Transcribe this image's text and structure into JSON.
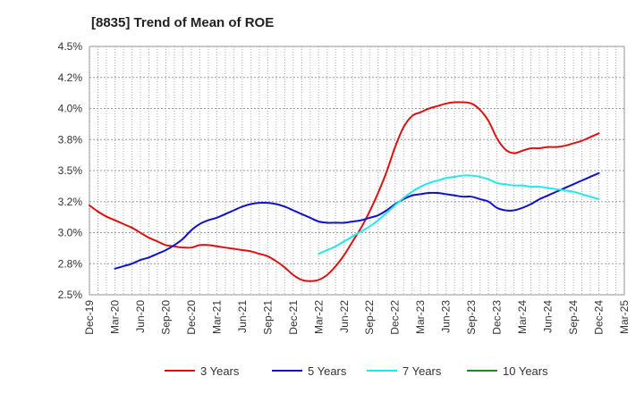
{
  "chart_data": {
    "type": "line",
    "title": "[8835]  Trend of Mean of ROE",
    "xlabel": "",
    "ylabel": "",
    "x_ticks": [
      "Dec-19",
      "Mar-20",
      "Jun-20",
      "Sep-20",
      "Dec-20",
      "Mar-21",
      "Jun-21",
      "Sep-21",
      "Dec-21",
      "Mar-22",
      "Jun-22",
      "Sep-22",
      "Dec-22",
      "Mar-23",
      "Jun-23",
      "Sep-23",
      "Dec-23",
      "Mar-24",
      "Jun-24",
      "Sep-24",
      "Dec-24",
      "Mar-25"
    ],
    "y_ticks": [
      "2.5%",
      "2.8%",
      "3.0%",
      "3.2%",
      "3.5%",
      "3.8%",
      "4.0%",
      "4.2%",
      "4.5%"
    ],
    "y_tick_values": [
      2.5,
      2.75,
      3.0,
      3.25,
      3.5,
      3.75,
      4.0,
      4.25,
      4.5
    ],
    "ylim": [
      2.5,
      4.5
    ],
    "grid": true,
    "legend_position": "bottom",
    "series": [
      {
        "name": "3 Years",
        "color": "#dd1111",
        "points": [
          [
            "2019-12",
            3.22
          ],
          [
            "2020-01",
            3.17
          ],
          [
            "2020-02",
            3.13
          ],
          [
            "2020-03",
            3.1
          ],
          [
            "2020-04",
            3.07
          ],
          [
            "2020-05",
            3.04
          ],
          [
            "2020-06",
            3.0
          ],
          [
            "2020-07",
            2.96
          ],
          [
            "2020-08",
            2.93
          ],
          [
            "2020-09",
            2.9
          ],
          [
            "2020-10",
            2.89
          ],
          [
            "2020-11",
            2.88
          ],
          [
            "2020-12",
            2.88
          ],
          [
            "2021-01",
            2.9
          ],
          [
            "2021-02",
            2.9
          ],
          [
            "2021-03",
            2.89
          ],
          [
            "2021-04",
            2.88
          ],
          [
            "2021-05",
            2.87
          ],
          [
            "2021-06",
            2.86
          ],
          [
            "2021-07",
            2.85
          ],
          [
            "2021-08",
            2.83
          ],
          [
            "2021-09",
            2.81
          ],
          [
            "2021-10",
            2.77
          ],
          [
            "2021-11",
            2.72
          ],
          [
            "2021-12",
            2.66
          ],
          [
            "2022-01",
            2.62
          ],
          [
            "2022-02",
            2.61
          ],
          [
            "2022-03",
            2.62
          ],
          [
            "2022-04",
            2.66
          ],
          [
            "2022-05",
            2.73
          ],
          [
            "2022-06",
            2.82
          ],
          [
            "2022-07",
            2.93
          ],
          [
            "2022-08",
            3.04
          ],
          [
            "2022-09",
            3.17
          ],
          [
            "2022-10",
            3.32
          ],
          [
            "2022-11",
            3.49
          ],
          [
            "2022-12",
            3.69
          ],
          [
            "2023-01",
            3.85
          ],
          [
            "2023-02",
            3.94
          ],
          [
            "2023-03",
            3.97
          ],
          [
            "2023-04",
            4.0
          ],
          [
            "2023-05",
            4.02
          ],
          [
            "2023-06",
            4.04
          ],
          [
            "2023-07",
            4.05
          ],
          [
            "2023-08",
            4.05
          ],
          [
            "2023-09",
            4.04
          ],
          [
            "2023-10",
            3.99
          ],
          [
            "2023-11",
            3.9
          ],
          [
            "2023-12",
            3.76
          ],
          [
            "2024-01",
            3.67
          ],
          [
            "2024-02",
            3.64
          ],
          [
            "2024-03",
            3.66
          ],
          [
            "2024-04",
            3.68
          ],
          [
            "2024-05",
            3.68
          ],
          [
            "2024-06",
            3.69
          ],
          [
            "2024-07",
            3.69
          ],
          [
            "2024-08",
            3.7
          ],
          [
            "2024-09",
            3.72
          ],
          [
            "2024-10",
            3.74
          ],
          [
            "2024-11",
            3.77
          ],
          [
            "2024-12",
            3.8
          ]
        ]
      },
      {
        "name": "5 Years",
        "color": "#1111cc",
        "points": [
          [
            "2020-03",
            2.71
          ],
          [
            "2020-04",
            2.73
          ],
          [
            "2020-05",
            2.75
          ],
          [
            "2020-06",
            2.78
          ],
          [
            "2020-07",
            2.8
          ],
          [
            "2020-08",
            2.83
          ],
          [
            "2020-09",
            2.86
          ],
          [
            "2020-10",
            2.9
          ],
          [
            "2020-11",
            2.95
          ],
          [
            "2020-12",
            3.02
          ],
          [
            "2021-01",
            3.07
          ],
          [
            "2021-02",
            3.1
          ],
          [
            "2021-03",
            3.12
          ],
          [
            "2021-04",
            3.15
          ],
          [
            "2021-05",
            3.18
          ],
          [
            "2021-06",
            3.21
          ],
          [
            "2021-07",
            3.23
          ],
          [
            "2021-08",
            3.24
          ],
          [
            "2021-09",
            3.24
          ],
          [
            "2021-10",
            3.23
          ],
          [
            "2021-11",
            3.21
          ],
          [
            "2021-12",
            3.18
          ],
          [
            "2022-01",
            3.15
          ],
          [
            "2022-02",
            3.12
          ],
          [
            "2022-03",
            3.09
          ],
          [
            "2022-04",
            3.08
          ],
          [
            "2022-05",
            3.08
          ],
          [
            "2022-06",
            3.08
          ],
          [
            "2022-07",
            3.09
          ],
          [
            "2022-08",
            3.1
          ],
          [
            "2022-09",
            3.12
          ],
          [
            "2022-10",
            3.14
          ],
          [
            "2022-11",
            3.18
          ],
          [
            "2022-12",
            3.23
          ],
          [
            "2023-01",
            3.27
          ],
          [
            "2023-02",
            3.3
          ],
          [
            "2023-03",
            3.31
          ],
          [
            "2023-04",
            3.32
          ],
          [
            "2023-05",
            3.32
          ],
          [
            "2023-06",
            3.31
          ],
          [
            "2023-07",
            3.3
          ],
          [
            "2023-08",
            3.29
          ],
          [
            "2023-09",
            3.29
          ],
          [
            "2023-10",
            3.27
          ],
          [
            "2023-11",
            3.25
          ],
          [
            "2023-12",
            3.2
          ],
          [
            "2024-01",
            3.18
          ],
          [
            "2024-02",
            3.18
          ],
          [
            "2024-03",
            3.2
          ],
          [
            "2024-04",
            3.23
          ],
          [
            "2024-05",
            3.27
          ],
          [
            "2024-06",
            3.3
          ],
          [
            "2024-07",
            3.33
          ],
          [
            "2024-08",
            3.36
          ],
          [
            "2024-09",
            3.39
          ],
          [
            "2024-10",
            3.42
          ],
          [
            "2024-11",
            3.45
          ],
          [
            "2024-12",
            3.48
          ]
        ]
      },
      {
        "name": "7 Years",
        "color": "#22e8ee",
        "points": [
          [
            "2022-03",
            2.83
          ],
          [
            "2022-04",
            2.86
          ],
          [
            "2022-05",
            2.89
          ],
          [
            "2022-06",
            2.93
          ],
          [
            "2022-07",
            2.97
          ],
          [
            "2022-08",
            3.01
          ],
          [
            "2022-09",
            3.05
          ],
          [
            "2022-10",
            3.1
          ],
          [
            "2022-11",
            3.16
          ],
          [
            "2022-12",
            3.22
          ],
          [
            "2023-01",
            3.28
          ],
          [
            "2023-02",
            3.33
          ],
          [
            "2023-03",
            3.37
          ],
          [
            "2023-04",
            3.4
          ],
          [
            "2023-05",
            3.42
          ],
          [
            "2023-06",
            3.44
          ],
          [
            "2023-07",
            3.45
          ],
          [
            "2023-08",
            3.46
          ],
          [
            "2023-09",
            3.46
          ],
          [
            "2023-10",
            3.45
          ],
          [
            "2023-11",
            3.43
          ],
          [
            "2023-12",
            3.4
          ],
          [
            "2024-01",
            3.39
          ],
          [
            "2024-02",
            3.38
          ],
          [
            "2024-03",
            3.38
          ],
          [
            "2024-04",
            3.37
          ],
          [
            "2024-05",
            3.37
          ],
          [
            "2024-06",
            3.36
          ],
          [
            "2024-07",
            3.35
          ],
          [
            "2024-08",
            3.34
          ],
          [
            "2024-09",
            3.33
          ],
          [
            "2024-10",
            3.31
          ],
          [
            "2024-11",
            3.29
          ],
          [
            "2024-12",
            3.27
          ]
        ]
      },
      {
        "name": "10 Years",
        "color": "#228822",
        "points": []
      }
    ]
  }
}
